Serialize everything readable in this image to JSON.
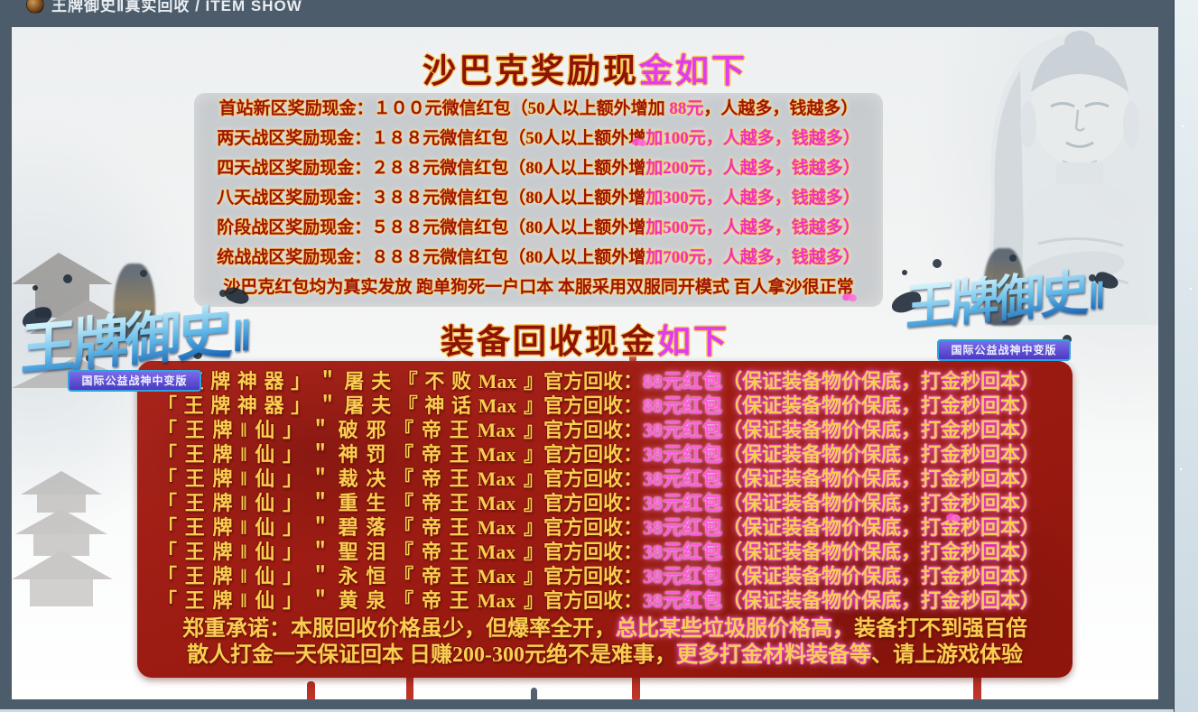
{
  "topbar": {
    "title": "王牌御史Ⅱ真实回收 / ITEM SHOW"
  },
  "logo": {
    "text": "王牌御史",
    "numeral": "Ⅱ",
    "badge": "国际公益战神中变版"
  },
  "colors": {
    "accent_pink": "#ee32c4",
    "dark_red": "#9c140b",
    "gold": "#f6cf52",
    "box_red": "#9c1b12",
    "page_frame": "#4d5c6a"
  },
  "section1": {
    "title_dark": "沙巴克奖励现",
    "title_pink": "金如下",
    "rows": [
      {
        "segments": [
          {
            "t": "首站新区奖励现金：１００元微信红包（50人以上额外增加 ",
            "s": "d"
          },
          {
            "t": "88元",
            "s": "p"
          },
          {
            "t": "，人越多，钱越多）",
            "s": "d"
          }
        ]
      },
      {
        "segments": [
          {
            "t": "两天战区奖励现金：１８８元微信红包（50人以上额外增",
            "s": "d"
          },
          {
            "t": "加100元，人越多，钱越多）",
            "s": "p"
          }
        ]
      },
      {
        "segments": [
          {
            "t": "四天战区奖励现金：２８８元微信红包（80人以上额外增",
            "s": "d"
          },
          {
            "t": "加200元，人越多，钱越多）",
            "s": "p"
          }
        ]
      },
      {
        "segments": [
          {
            "t": "八天战区奖励现金：３８８元微信红包（80人以上额外增",
            "s": "d"
          },
          {
            "t": "加300元，人越多，钱越多）",
            "s": "p"
          }
        ]
      },
      {
        "segments": [
          {
            "t": "阶段战区奖励现金：５８８元微信红包（80人以上额外增",
            "s": "d"
          },
          {
            "t": "加500元，人越多，钱越多）",
            "s": "p"
          }
        ]
      },
      {
        "segments": [
          {
            "t": "统战战区奖励现金：８８８元微信红包（80人以上额外增",
            "s": "d"
          },
          {
            "t": "加700元，人越多，钱越多）",
            "s": "p"
          }
        ]
      },
      {
        "segments": [
          {
            "t": "沙巴克红包均为真实发放 跑单狗死一户口本 本服采用双服同开模式 百人拿沙很正常",
            "s": "d"
          }
        ]
      }
    ]
  },
  "section2": {
    "title_dark": "装备回收现金",
    "title_pink": "如下",
    "rows": [
      {
        "name": "「王牌神器」＂屠夫『不败Max』",
        "recycle": "官方回收：",
        "amount": "88元红包",
        "note": "（保证装备物价保底，打金秒回本）"
      },
      {
        "name": "「王牌神器」＂屠夫『神话Max』",
        "recycle": "官方回收：",
        "amount": "88元红包",
        "note": "（保证装备物价保底，打金秒回本）"
      },
      {
        "name": "「王牌‖仙」＂破邪『帝王Max』",
        "recycle": "官方回收：",
        "amount": "38元红包",
        "note": "（保证装备物价保底，打金秒回本）"
      },
      {
        "name": "「王牌‖仙」＂神罚『帝王Max』",
        "recycle": "官方回收：",
        "amount": "38元红包",
        "note": "（保证装备物价保底，打金秒回本）"
      },
      {
        "name": "「王牌‖仙」＂裁决『帝王Max』",
        "recycle": "官方回收：",
        "amount": "38元红包",
        "note": "（保证装备物价保底，打金秒回本）"
      },
      {
        "name": "「王牌‖仙」＂重生『帝王Max』",
        "recycle": "官方回收：",
        "amount": "38元红包",
        "note": "（保证装备物价保底，打金秒回本）"
      },
      {
        "name": "「王牌‖仙」＂碧落『帝王Max』",
        "recycle": "官方回收：",
        "amount": "38元红包",
        "note": "（保证装备物价保底，打金秒回本）"
      },
      {
        "name": "「王牌‖仙」＂聖泪『帝王Max』",
        "recycle": "官方回收：",
        "amount": "38元红包",
        "note": "（保证装备物价保底，打金秒回本）"
      },
      {
        "name": "「王牌‖仙」＂永恒『帝王Max』",
        "recycle": "官方回收：",
        "amount": "38元红包",
        "note": "（保证装备物价保底，打金秒回本）"
      },
      {
        "name": "「王牌‖仙」＂黄泉『帝王Max』",
        "recycle": "官方回收：",
        "amount": "38元红包",
        "note": "（保证装备物价保底，打金秒回本）"
      }
    ],
    "promise": [
      {
        "segments": [
          {
            "t": "郑重承诺：本服回收价格虽少，但爆率全开，",
            "s": "g"
          },
          {
            "t": "总比某些垃圾服价格高，",
            "s": "gg"
          },
          {
            "t": "装备打不到强百倍",
            "s": "g"
          }
        ]
      },
      {
        "segments": [
          {
            "t": "散人打金一天保证回本 日赚200-300元绝不是难事，",
            "s": "g"
          },
          {
            "t": "更多打金材料装备等",
            "s": "gg"
          },
          {
            "t": "、请上游戏体验",
            "s": "g"
          }
        ]
      }
    ]
  }
}
